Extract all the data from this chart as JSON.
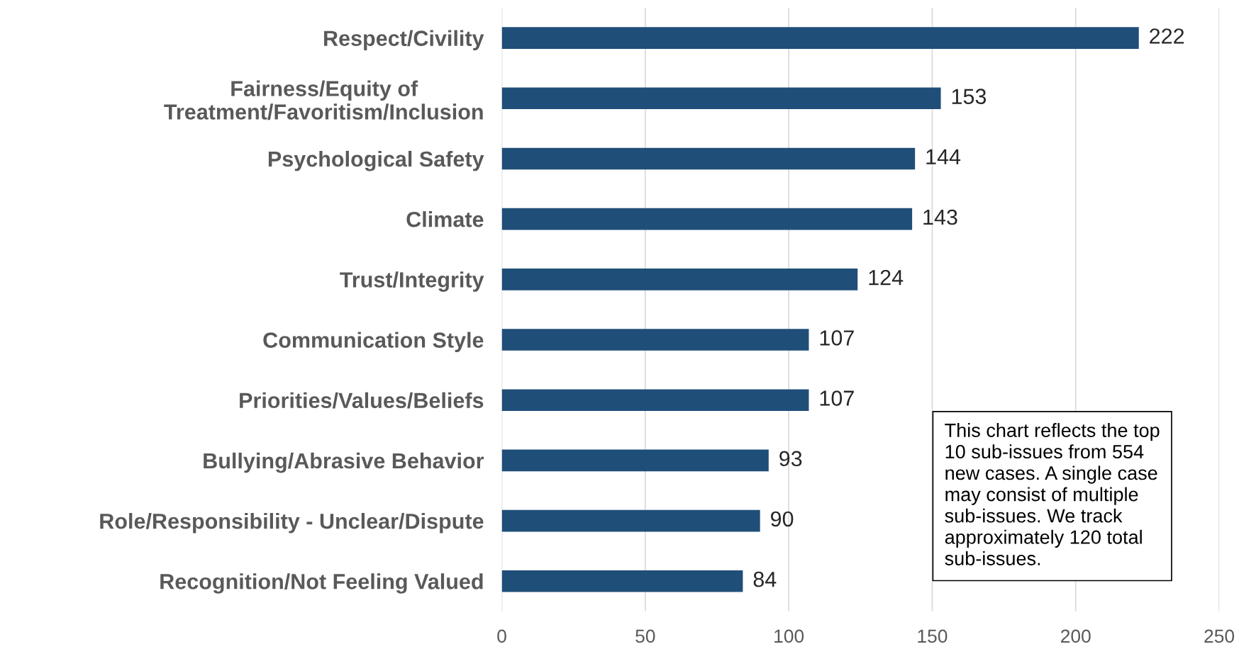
{
  "chart_data": {
    "type": "bar",
    "orientation": "horizontal",
    "categories": [
      "Respect/Civility",
      "Fairness/Equity of\nTreatment/Favoritism/Inclusion",
      "Psychological Safety",
      "Climate",
      "Trust/Integrity",
      "Communication Style",
      "Priorities/Values/Beliefs",
      "Bullying/Abrasive Behavior",
      "Role/Responsibility - Unclear/Dispute",
      "Recognition/Not Feeling Valued"
    ],
    "values": [
      222,
      153,
      144,
      143,
      124,
      107,
      107,
      93,
      90,
      84
    ],
    "color": "#1f4e79",
    "xlim": [
      0,
      250
    ],
    "xticks": [
      0,
      50,
      100,
      150,
      200,
      250
    ],
    "grid": "x",
    "data_labels": true,
    "legend": false,
    "annotations": [
      "This chart reflects the top\n10 sub-issues from 554\nnew cases. A single case\nmay consist of multiple\nsub-issues. We track\napproximately 120 total\nsub-issues."
    ]
  }
}
